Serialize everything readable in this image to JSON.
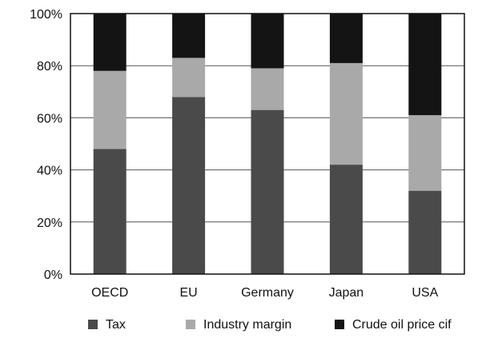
{
  "chart_data": {
    "type": "bar",
    "stacked": true,
    "normalized": true,
    "title": "",
    "xlabel": "",
    "ylabel": "",
    "ylim": [
      0,
      100
    ],
    "y_ticks": [
      "0%",
      "20%",
      "40%",
      "60%",
      "80%",
      "100%"
    ],
    "grid": "horizontal",
    "legend_position": "bottom",
    "categories": [
      "OECD",
      "EU",
      "Germany",
      "Japan",
      "USA"
    ],
    "series": [
      {
        "name": "Tax",
        "values": [
          48,
          68,
          63,
          42,
          32
        ],
        "color": "#4a4a4a"
      },
      {
        "name": "Industry margin",
        "values": [
          30,
          15,
          16,
          39,
          29
        ],
        "color": "#a9a9a9"
      },
      {
        "name": "Crude oil price cif",
        "values": [
          22,
          17,
          21,
          19,
          39
        ],
        "color": "#141414"
      }
    ]
  }
}
